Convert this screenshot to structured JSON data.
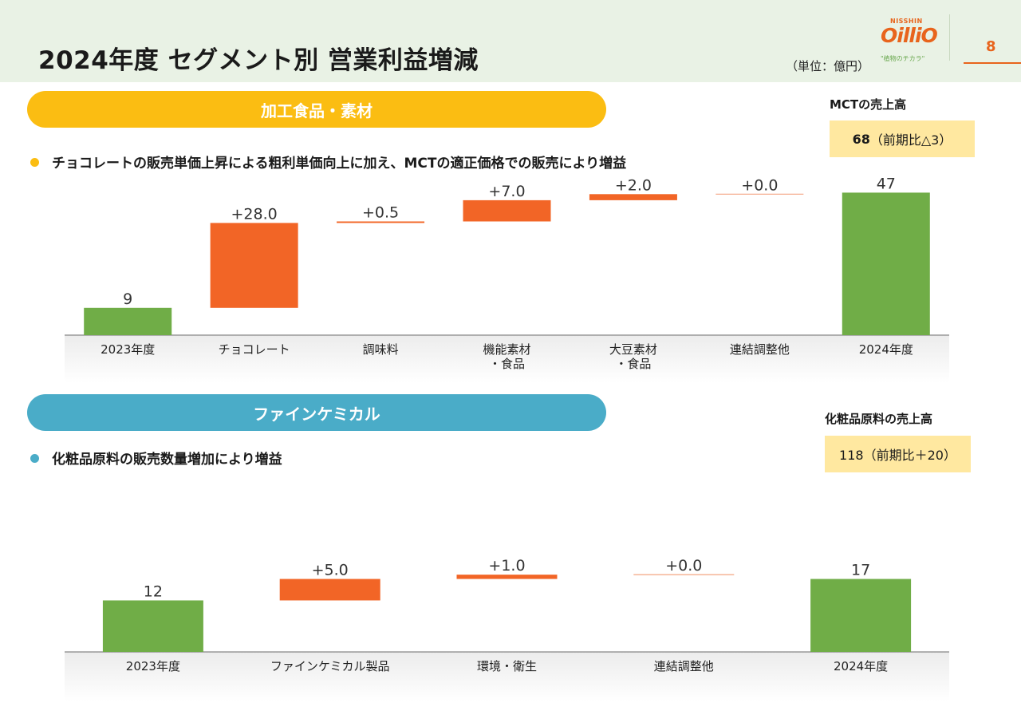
{
  "header": {
    "title": "2024年度 セグメント別 営業利益増減",
    "unit": "（単位：億円）",
    "logo_small": "NISSHIN",
    "logo_main": "OilliO",
    "logo_tagline": "\"植物のチカラ\"",
    "page_number": "8"
  },
  "section1": {
    "band": "加工食品・素材",
    "bullet": "チョコレートの販売単価上昇による粗利単価向上に加え、MCTの適正価格での販売により増益",
    "side_label": "MCTの売上高",
    "side_value": "68",
    "side_note": "（前期比△3）"
  },
  "section2": {
    "band": "ファインケミカル",
    "bullet": "化粧品原料の販売数量増加により増益",
    "side_label": "化粧品原料の売上高",
    "side_value": "118（前期比＋20）"
  },
  "colors": {
    "total": "#70ad47",
    "increase": "#f26526",
    "band1": "#fbbd12",
    "band2": "#4aacc8"
  },
  "chart_data": [
    {
      "type": "bar",
      "subtype": "waterfall",
      "categories": [
        [
          "2023年度"
        ],
        [
          "チョコレート"
        ],
        [
          "調味料"
        ],
        [
          "機能素材",
          "・食品"
        ],
        [
          "大豆素材",
          "・食品"
        ],
        [
          "連結調整他"
        ],
        [
          "2024年度"
        ]
      ],
      "values": [
        9,
        28.0,
        0.5,
        7.0,
        2.0,
        0.0,
        47
      ],
      "kinds": [
        "total",
        "delta",
        "delta",
        "delta",
        "delta",
        "delta",
        "total"
      ],
      "labels": [
        "9",
        "+28.0",
        "+0.5",
        "+7.0",
        "+2.0",
        "+0.0",
        "47"
      ]
    },
    {
      "type": "bar",
      "subtype": "waterfall",
      "categories": [
        [
          "2023年度"
        ],
        [
          "ファインケミカル製品"
        ],
        [
          "環境・衛生"
        ],
        [
          "連結調整他"
        ],
        [
          "2024年度"
        ]
      ],
      "values": [
        12,
        5.0,
        1.0,
        0.0,
        17
      ],
      "kinds": [
        "total",
        "delta",
        "delta",
        "delta",
        "total"
      ],
      "labels": [
        "12",
        "+5.0",
        "+1.0",
        "+0.0",
        "17"
      ]
    }
  ]
}
